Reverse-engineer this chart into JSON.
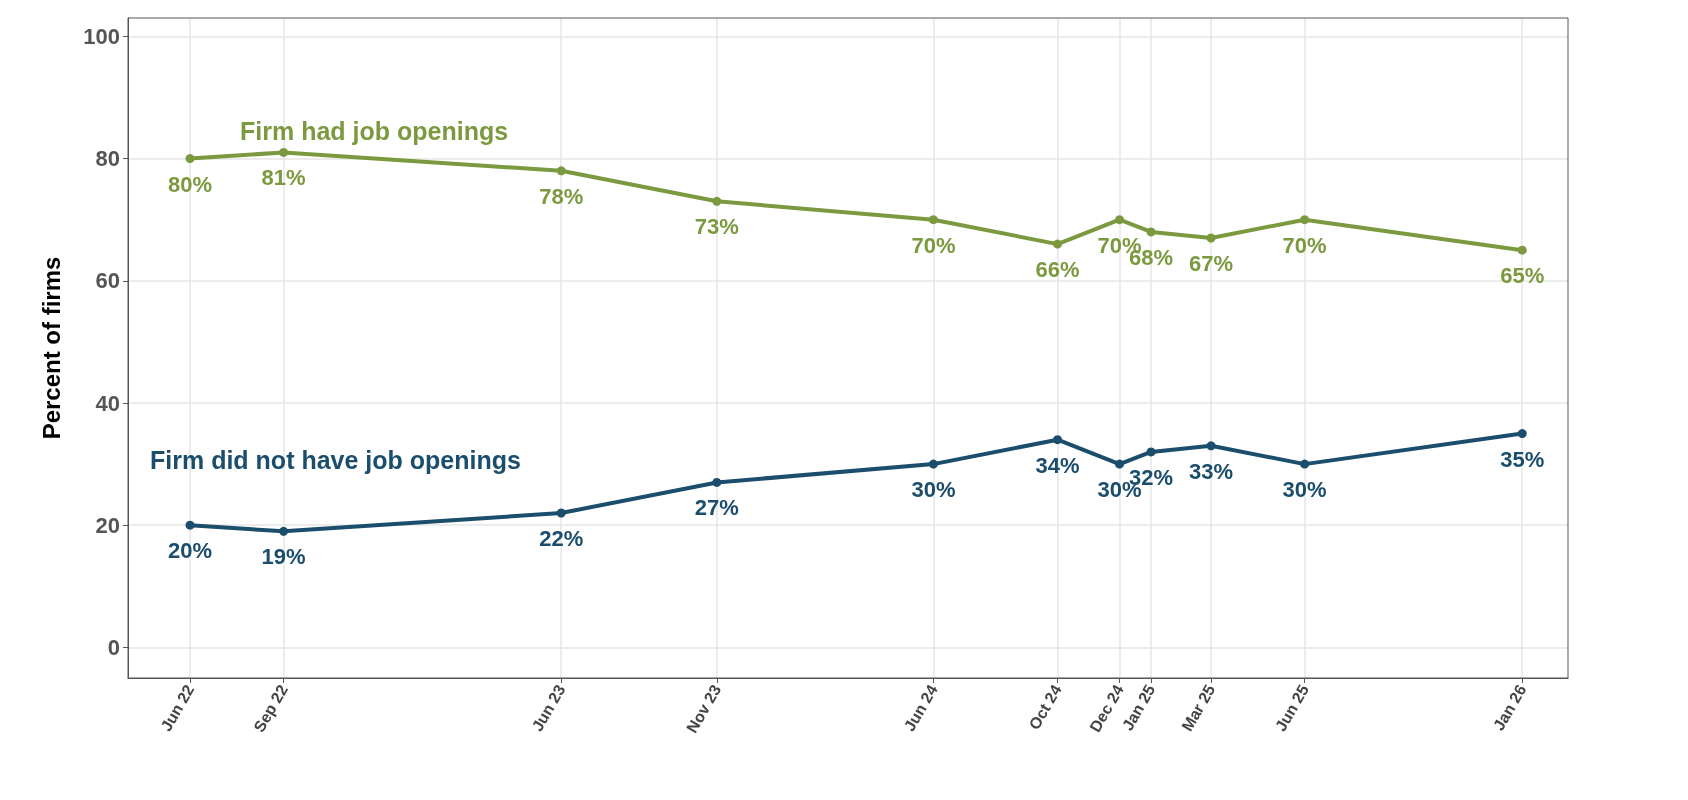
{
  "chart_data": {
    "type": "line",
    "ylabel": "Percent of firms",
    "x": [
      "2022-06",
      "2022-09",
      "2023-06",
      "2023-11",
      "2024-06",
      "2024-10",
      "2024-12",
      "2025-01",
      "2025-03",
      "2025-06",
      "2026-01"
    ],
    "series": [
      {
        "name": "Firm had job openings",
        "color": "#7b9a3f",
        "values": [
          80,
          81,
          78,
          73,
          70,
          66,
          70,
          68,
          67,
          70,
          65
        ],
        "value_labels": [
          "80%",
          "81%",
          "78%",
          "73%",
          "70%",
          "66%",
          "70%",
          "68%",
          "67%",
          "70%",
          "65%"
        ]
      },
      {
        "name": "Firm did not have job openings",
        "color": "#1b4d6d",
        "values": [
          20,
          19,
          22,
          27,
          30,
          34,
          30,
          32,
          33,
          30,
          35
        ],
        "value_labels": [
          "20%",
          "19%",
          "22%",
          "27%",
          "30%",
          "34%",
          "30%",
          "32%",
          "33%",
          "30%",
          "35%"
        ]
      }
    ],
    "xlim": [
      "2022-04",
      "2026-02-15"
    ],
    "xticks": [
      {
        "value": "2022-06",
        "label": "Jun 22"
      },
      {
        "value": "2022-09",
        "label": "Sep 22"
      },
      {
        "value": "2023-06",
        "label": "Jun 23"
      },
      {
        "value": "2023-11",
        "label": "Nov 23"
      },
      {
        "value": "2024-06",
        "label": "Jun 24"
      },
      {
        "value": "2024-10",
        "label": "Oct 24"
      },
      {
        "value": "2024-12",
        "label": "Dec 24"
      },
      {
        "value": "2025-01",
        "label": "Jan 25"
      },
      {
        "value": "2025-03",
        "label": "Mar 25"
      },
      {
        "value": "2025-06",
        "label": "Jun 25"
      },
      {
        "value": "2026-01",
        "label": "Jan 26"
      }
    ],
    "ylim": [
      -5,
      103
    ],
    "yticks": [
      0,
      20,
      40,
      60,
      80,
      100
    ],
    "grid": true,
    "legend": false,
    "marker": "circle",
    "line_style": "solid"
  }
}
